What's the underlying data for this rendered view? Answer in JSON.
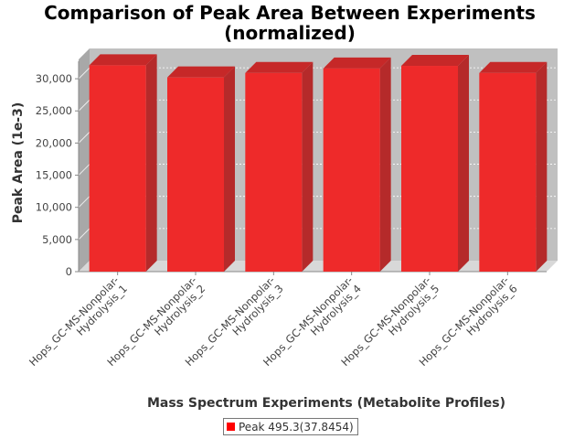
{
  "chart_data": {
    "type": "bar",
    "title": "Comparison of Peak Area Between Experiments (normalized)",
    "title_lines": [
      "Comparison of Peak Area Between Experiments",
      "(normalized)"
    ],
    "xlabel": "Mass Spectrum Experiments (Metabolite Profiles)",
    "ylabel": "Peak Area (1e-3)",
    "ylim": [
      0,
      33000
    ],
    "yticks": [
      0,
      5000,
      10000,
      15000,
      20000,
      25000,
      30000
    ],
    "ytick_labels": [
      "0",
      "5,000",
      "10,000",
      "15,000",
      "20,000",
      "25,000",
      "30,000"
    ],
    "categories": [
      "Hops_GC-MS-Nonpolar-Hydrolysis_1",
      "Hops_GC-MS-Nonpolar-Hydrolysis_2",
      "Hops_GC-MS-Nonpolar-Hydrolysis_3",
      "Hops_GC-MS-Nonpolar-Hydrolysis_4",
      "Hops_GC-MS-Nonpolar-Hydrolysis_5",
      "Hops_GC-MS-Nonpolar-Hydrolysis_6"
    ],
    "category_lines": [
      [
        "Hops_GC-MS-Nonpolar-",
        "Hydrolysis_1"
      ],
      [
        "Hops_GC-MS-Nonpolar-",
        "Hydrolysis_2"
      ],
      [
        "Hops_GC-MS-Nonpolar-",
        "Hydrolysis_3"
      ],
      [
        "Hops_GC-MS-Nonpolar-",
        "Hydrolysis_4"
      ],
      [
        "Hops_GC-MS-Nonpolar-",
        "Hydrolysis_5"
      ],
      [
        "Hops_GC-MS-Nonpolar-",
        "Hydrolysis_6"
      ]
    ],
    "series": [
      {
        "name": "Peak 495.3(37.8454)",
        "values": [
          32100,
          30200,
          30900,
          31600,
          32000,
          30900
        ]
      }
    ],
    "grid": true,
    "legend": "bottom-center",
    "colors": {
      "bar": "#ee2a2a",
      "bar_top": "#c62828",
      "bar_side": "#b52a2a",
      "plot_bg": "#c0c0c0",
      "legend_swatch": "#ff0000"
    }
  }
}
